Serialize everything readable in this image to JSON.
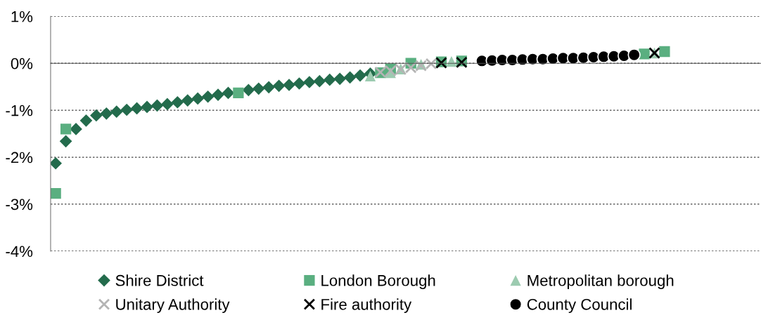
{
  "chart_data": {
    "type": "scatter",
    "categories": [
      null,
      null,
      null,
      null,
      null,
      null,
      null,
      null,
      null,
      null,
      null,
      null,
      null,
      null,
      null,
      null,
      null,
      null,
      null,
      null,
      null,
      null,
      null,
      null,
      null,
      null,
      null,
      null,
      null,
      null,
      null,
      null,
      null,
      null,
      null,
      null,
      null,
      null,
      null,
      null,
      null,
      null,
      null,
      null,
      null,
      null,
      null,
      null,
      null,
      null,
      null,
      null,
      null,
      null,
      null,
      null,
      null,
      null,
      null,
      null,
      null,
      null,
      null,
      null,
      null,
      null,
      null,
      null,
      null,
      null
    ],
    "series": [
      {
        "name": "Shire District",
        "color": "#236b4c",
        "marker": "diamond",
        "values": [
          -2.13,
          -1.66,
          -1.4,
          -1.22,
          -1.11,
          -1.07,
          -1.03,
          -0.99,
          -0.96,
          -0.93,
          -0.9,
          -0.87,
          -0.83,
          -0.79,
          -0.75,
          -0.71,
          -0.67,
          -0.63,
          null,
          -0.57,
          -0.54,
          -0.51,
          -0.48,
          -0.46,
          -0.43,
          -0.4,
          -0.38,
          -0.35,
          -0.33,
          -0.3,
          -0.26,
          -0.22,
          null,
          null,
          null,
          null,
          null,
          null,
          null,
          null,
          null,
          null,
          null,
          null,
          null,
          null,
          null,
          null,
          null,
          null,
          null,
          null,
          null,
          null,
          null,
          null,
          null,
          null,
          null,
          null,
          null,
          null,
          null,
          null,
          null,
          null,
          null,
          null,
          null,
          null
        ]
      },
      {
        "name": "London Borough",
        "color": "#5aaf80",
        "marker": "square",
        "values": [
          -2.77,
          -1.4,
          null,
          null,
          null,
          null,
          null,
          null,
          null,
          null,
          null,
          null,
          null,
          null,
          null,
          null,
          null,
          null,
          -0.63,
          null,
          null,
          null,
          null,
          null,
          null,
          null,
          null,
          null,
          null,
          null,
          null,
          null,
          -0.2,
          -0.12,
          null,
          0.0,
          null,
          null,
          0.03,
          null,
          0.05,
          null,
          null,
          null,
          null,
          null,
          null,
          null,
          null,
          null,
          null,
          null,
          null,
          null,
          null,
          null,
          null,
          null,
          0.2,
          null,
          0.25,
          null,
          null,
          null,
          null,
          null,
          null,
          null,
          null,
          null
        ]
      },
      {
        "name": "Metropolitan borough",
        "color": "#9ccbb0",
        "marker": "triangle",
        "values": [
          null,
          null,
          null,
          null,
          null,
          null,
          null,
          null,
          null,
          null,
          null,
          null,
          null,
          null,
          null,
          null,
          null,
          null,
          null,
          null,
          null,
          null,
          null,
          null,
          null,
          null,
          null,
          null,
          null,
          null,
          null,
          -0.27,
          null,
          -0.2,
          -0.12,
          null,
          -0.02,
          null,
          null,
          0.04,
          null,
          null,
          null,
          null,
          null,
          null,
          null,
          null,
          null,
          null,
          null,
          null,
          null,
          null,
          null,
          null,
          null,
          null,
          null,
          0.22,
          null,
          null,
          null,
          null,
          null,
          null,
          null,
          null,
          null,
          null
        ]
      },
      {
        "name": "Unitary Authority",
        "color": "#b4b4b4",
        "marker": "cross",
        "values": [
          null,
          null,
          null,
          null,
          null,
          null,
          null,
          null,
          null,
          null,
          null,
          null,
          null,
          null,
          null,
          null,
          null,
          null,
          null,
          null,
          null,
          null,
          null,
          null,
          null,
          null,
          null,
          null,
          null,
          null,
          null,
          null,
          -0.19,
          -0.16,
          -0.13,
          -0.09,
          -0.05,
          -0.01,
          null,
          null,
          null,
          null,
          null,
          null,
          null,
          null,
          null,
          null,
          null,
          null,
          null,
          null,
          null,
          null,
          null,
          null,
          null,
          null,
          null,
          null,
          null,
          null,
          null,
          null,
          null,
          null,
          null,
          null,
          null,
          null
        ]
      },
      {
        "name": "Fire authority",
        "color": "#000000",
        "marker": "cross",
        "values": [
          null,
          null,
          null,
          null,
          null,
          null,
          null,
          null,
          null,
          null,
          null,
          null,
          null,
          null,
          null,
          null,
          null,
          null,
          null,
          null,
          null,
          null,
          null,
          null,
          null,
          null,
          null,
          null,
          null,
          null,
          null,
          null,
          null,
          null,
          null,
          null,
          null,
          null,
          0.01,
          null,
          0.02,
          null,
          null,
          null,
          null,
          null,
          null,
          null,
          null,
          null,
          null,
          null,
          null,
          null,
          null,
          null,
          null,
          null,
          null,
          0.22,
          null,
          null,
          null,
          null,
          null,
          null,
          null,
          null,
          null,
          null
        ]
      },
      {
        "name": "County Council",
        "color": "#000000",
        "marker": "circle",
        "values": [
          null,
          null,
          null,
          null,
          null,
          null,
          null,
          null,
          null,
          null,
          null,
          null,
          null,
          null,
          null,
          null,
          null,
          null,
          null,
          null,
          null,
          null,
          null,
          null,
          null,
          null,
          null,
          null,
          null,
          null,
          null,
          null,
          null,
          null,
          null,
          null,
          null,
          null,
          null,
          null,
          null,
          null,
          0.05,
          0.06,
          0.07,
          0.07,
          0.08,
          0.09,
          0.09,
          0.1,
          0.11,
          0.11,
          0.12,
          0.13,
          0.14,
          0.15,
          0.16,
          0.18,
          null,
          null,
          null,
          null,
          null,
          null,
          null,
          null,
          null,
          null,
          null,
          null
        ]
      }
    ],
    "ylim": [
      -4,
      1
    ],
    "yticks": [
      {
        "value": -4,
        "label": "-4%"
      },
      {
        "value": -3,
        "label": "-3%"
      },
      {
        "value": -2,
        "label": "-2%"
      },
      {
        "value": -1,
        "label": "-1%"
      },
      {
        "value": 0,
        "label": "0%"
      },
      {
        "value": 1,
        "label": "1%"
      }
    ],
    "grid": "y",
    "legend": "bottom"
  }
}
